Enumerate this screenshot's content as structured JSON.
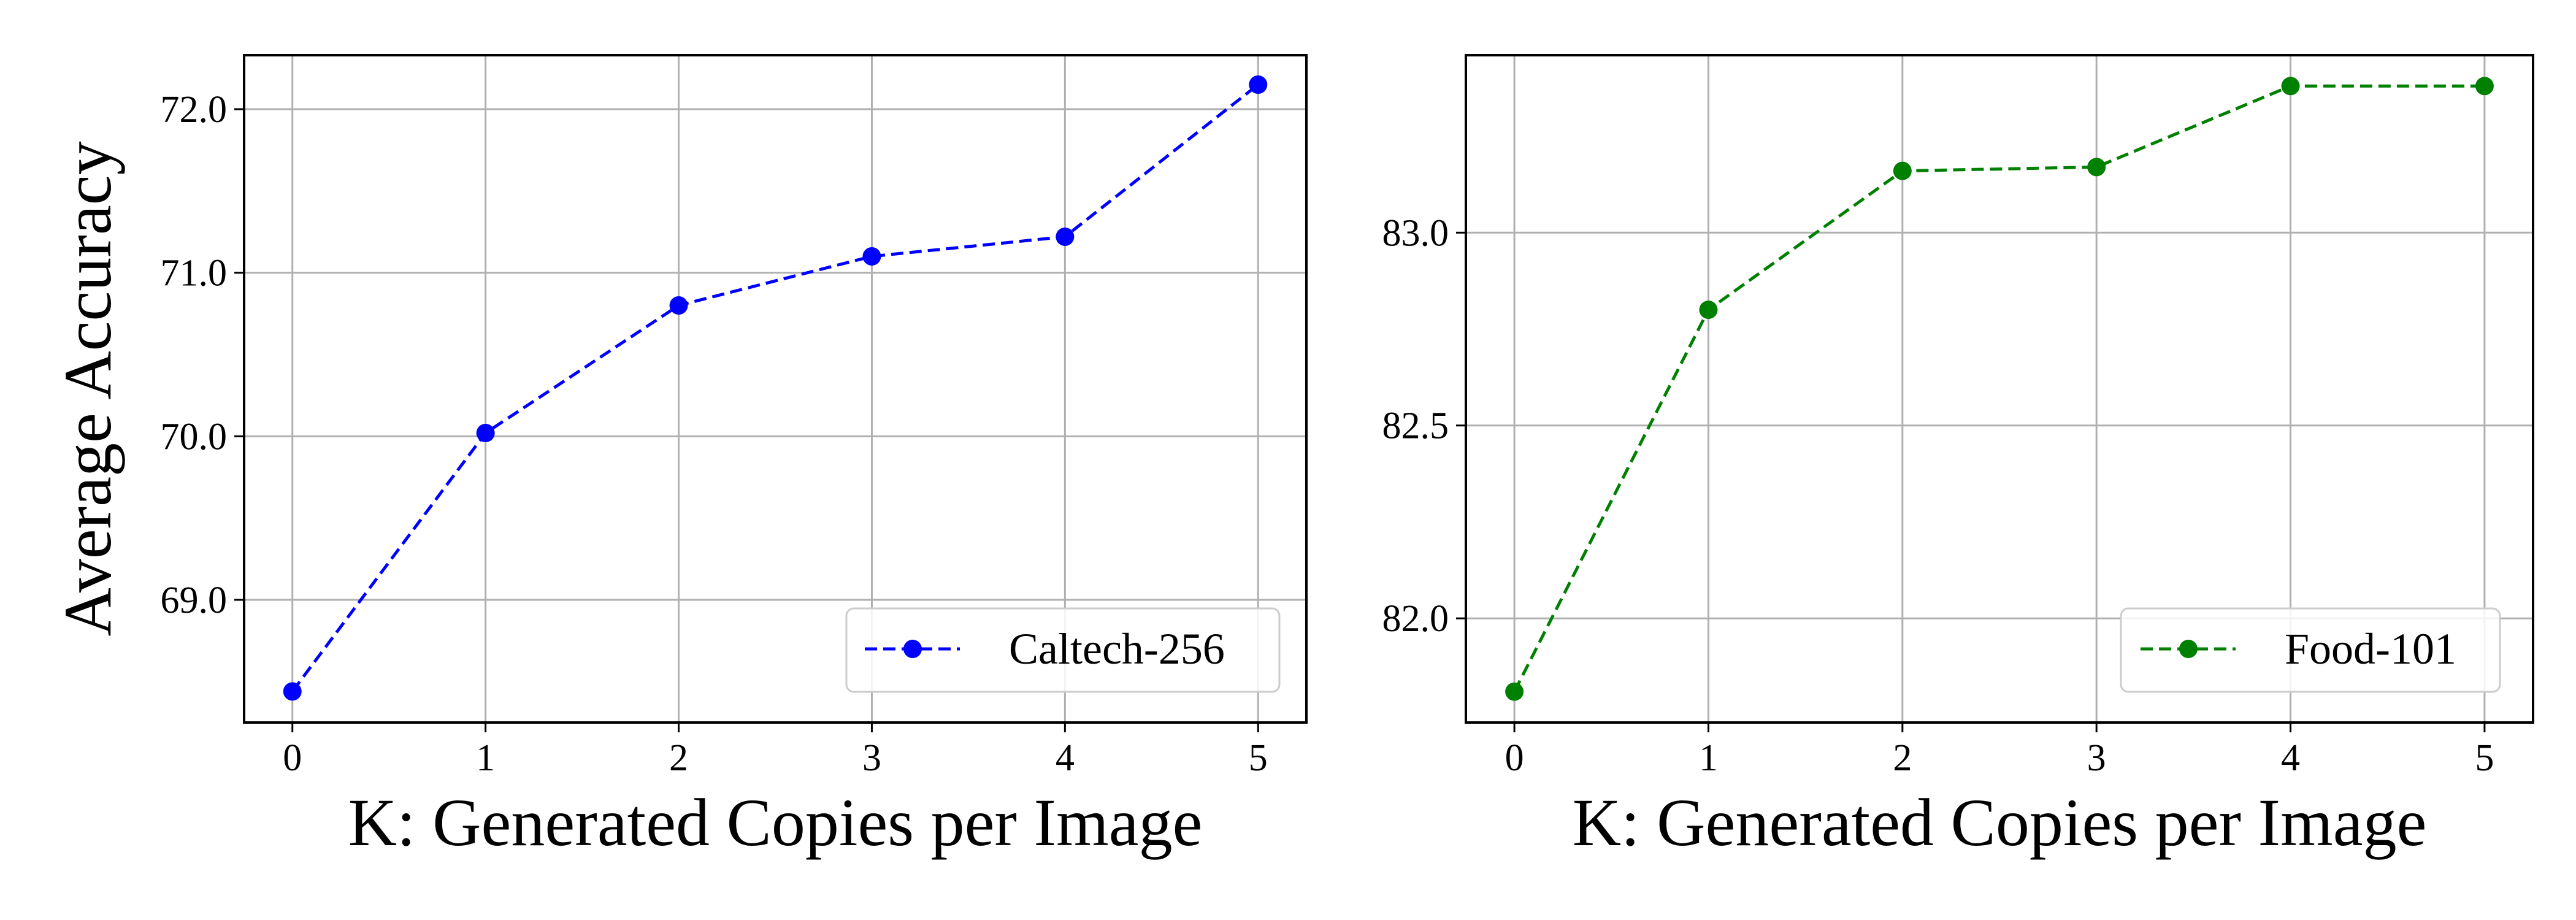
{
  "chart_data": [
    {
      "type": "line",
      "xlabel": "K: Generated Copies per Image",
      "ylabel": "Average Accuracy",
      "x": [
        0,
        1,
        2,
        3,
        4,
        5
      ],
      "xticks": [
        "0",
        "1",
        "2",
        "3",
        "4",
        "5"
      ],
      "xlim": [
        -0.25,
        5.25
      ],
      "ylim": [
        68.25,
        72.33
      ],
      "yticks": [
        "69.0",
        "70.0",
        "71.0",
        "72.0"
      ],
      "ytick_values": [
        69.0,
        70.0,
        71.0,
        72.0
      ],
      "grid": true,
      "legend_position": "bottom-right",
      "series": [
        {
          "name": "Caltech-256",
          "values": [
            68.44,
            70.02,
            70.8,
            71.1,
            71.22,
            72.15
          ],
          "color": "#0000ff",
          "line_style": "dashed",
          "marker": "circle"
        }
      ]
    },
    {
      "type": "line",
      "xlabel": "K: Generated Copies per Image",
      "ylabel": "",
      "x": [
        0,
        1,
        2,
        3,
        4,
        5
      ],
      "xticks": [
        "0",
        "1",
        "2",
        "3",
        "4",
        "5"
      ],
      "xlim": [
        -0.25,
        5.25
      ],
      "ylim": [
        81.73,
        83.46
      ],
      "yticks": [
        "82.0",
        "82.5",
        "83.0"
      ],
      "ytick_values": [
        82.0,
        82.5,
        83.0
      ],
      "grid": true,
      "legend_position": "bottom-right",
      "series": [
        {
          "name": "Food-101",
          "values": [
            81.81,
            82.8,
            83.16,
            83.17,
            83.38,
            83.38
          ],
          "color": "#008000",
          "line_style": "dashed",
          "marker": "circle"
        }
      ]
    }
  ]
}
